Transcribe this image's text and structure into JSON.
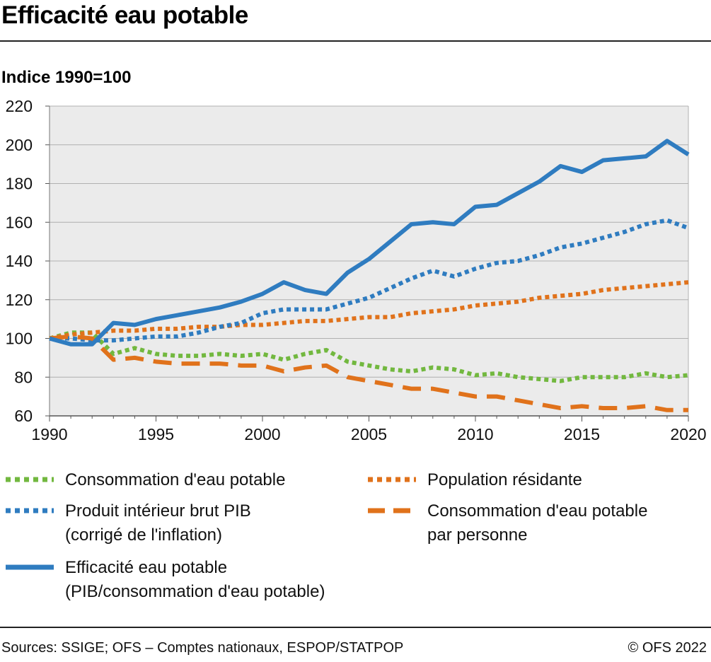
{
  "header": {
    "title": "Efficacité eau potable",
    "subtitle": "Indice 1990=100"
  },
  "colors": {
    "blue": "#2f7cc0",
    "green": "#72b83f",
    "orange": "#e0721b",
    "plot_bg": "#ebebeb",
    "grid": "#b0b0b0"
  },
  "chart_data": {
    "type": "line",
    "title": "Efficacité eau potable",
    "ylabel": "Indice 1990=100",
    "xlabel": "",
    "xlim": [
      1990,
      2020
    ],
    "ylim": [
      60,
      220
    ],
    "x_ticks": [
      "1990",
      "1995",
      "2000",
      "2005",
      "2010",
      "2015",
      "2020"
    ],
    "y_ticks": [
      "60",
      "80",
      "100",
      "120",
      "140",
      "160",
      "180",
      "200",
      "220"
    ],
    "grid": true,
    "x": [
      1990,
      1991,
      1992,
      1993,
      1994,
      1995,
      1996,
      1997,
      1998,
      1999,
      2000,
      2001,
      2002,
      2003,
      2004,
      2005,
      2006,
      2007,
      2008,
      2009,
      2010,
      2011,
      2012,
      2013,
      2014,
      2015,
      2016,
      2017,
      2018,
      2019,
      2020
    ],
    "series": [
      {
        "name": "Consommation d'eau potable",
        "color": "#72b83f",
        "style": "dotted",
        "values": [
          100,
          103,
          103,
          92,
          95,
          92,
          91,
          91,
          92,
          91,
          92,
          89,
          92,
          94,
          88,
          86,
          84,
          83,
          85,
          84,
          81,
          82,
          80,
          79,
          78,
          80,
          80,
          80,
          82,
          80,
          81
        ]
      },
      {
        "name": "Population résidante",
        "color": "#e0721b",
        "style": "dotted",
        "values": [
          100,
          102,
          103,
          104,
          104,
          105,
          105,
          106,
          106,
          107,
          107,
          108,
          109,
          109,
          110,
          111,
          111,
          113,
          114,
          115,
          117,
          118,
          119,
          121,
          122,
          123,
          125,
          126,
          127,
          128,
          129
        ]
      },
      {
        "name": "Produit intérieur brut PIB (corrigé de l'inflation)",
        "color": "#2f7cc0",
        "style": "dotted",
        "values": [
          100,
          100,
          99,
          99,
          100,
          101,
          101,
          103,
          106,
          108,
          113,
          115,
          115,
          115,
          118,
          121,
          126,
          131,
          135,
          132,
          136,
          139,
          140,
          143,
          147,
          149,
          152,
          155,
          159,
          161,
          157
        ]
      },
      {
        "name": "Consommation d'eau potable par personne",
        "color": "#e0721b",
        "style": "dashed",
        "values": [
          100,
          101,
          100,
          89,
          90,
          88,
          87,
          87,
          87,
          86,
          86,
          83,
          85,
          86,
          80,
          78,
          76,
          74,
          74,
          72,
          70,
          70,
          68,
          66,
          64,
          65,
          64,
          64,
          65,
          63,
          63
        ]
      },
      {
        "name": "Efficacité eau potable (PIB/consommation d'eau potable)",
        "color": "#2f7cc0",
        "style": "solid",
        "values": [
          100,
          97,
          97,
          108,
          107,
          110,
          112,
          114,
          116,
          119,
          123,
          129,
          125,
          123,
          134,
          141,
          150,
          159,
          160,
          159,
          168,
          169,
          175,
          181,
          189,
          186,
          192,
          193,
          194,
          202,
          195
        ]
      }
    ]
  },
  "legend": {
    "green_dotted": "Consommation d'eau potable",
    "orange_dotted": "Population résidante",
    "blue_dotted_line1": "Produit intérieur brut PIB",
    "blue_dotted_line2": "(corrigé de l'inflation)",
    "orange_dashed_line1": "Consommation d'eau potable",
    "orange_dashed_line2": "par personne",
    "blue_solid_line1": "Efficacité eau potable",
    "blue_solid_line2": "(PIB/consommation d'eau potable)"
  },
  "footer": {
    "sources": "Sources: SSIGE; OFS – Comptes nationaux, ESPOP/STATPOP",
    "copyright": "© OFS 2022"
  }
}
